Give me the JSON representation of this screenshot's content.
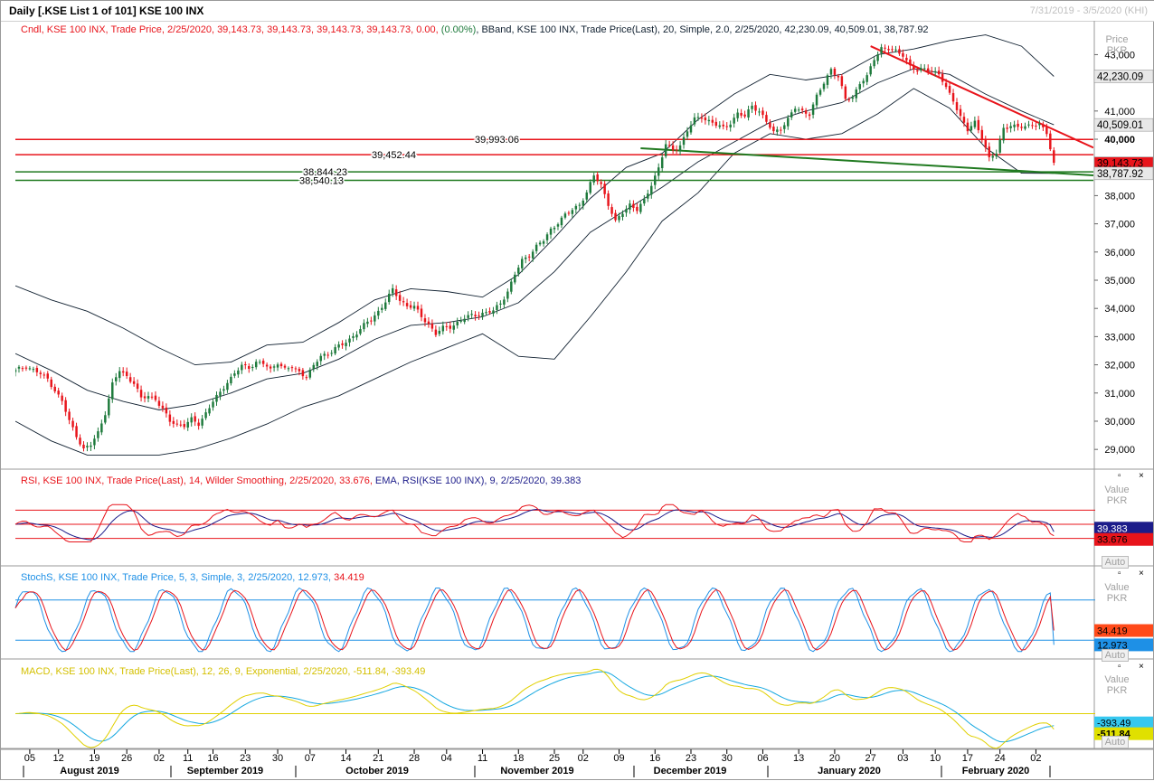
{
  "window": {
    "title": "Daily [.KSE List 1 of 101] KSE 100 INX",
    "date_range": "7/31/2019 - 3/5/2020 (KHI)"
  },
  "colors": {
    "up": "#1e7a3c",
    "down": "#e8141b",
    "bband": "#102030",
    "support": "#207a20",
    "resistance": "#e8141b",
    "rsi": "#e8141b",
    "rsi_ema": "#1c1c8a",
    "stoch_k": "#1e90e6",
    "stoch_d": "#e8141b",
    "macd": "#16a8e0",
    "macd_signal": "#e0d000"
  },
  "legends": {
    "price_cndl": "Cndl, KSE 100 INX, Trade Price,  2/25/2020, 39,143.73, 39,143.73, 39,143.73, 39,143.73, 0.00, ",
    "price_cndl_change": "(0.00%)",
    "price_bband": ", BBand, KSE 100 INX, Trade Price(Last),  20, Simple, 2.0,  2/25/2020, 42,230.09, 40,509.01, 38,787.92",
    "rsi_main": "RSI, KSE 100 INX, Trade Price(Last),  14, Wilder Smoothing,  2/25/2020, 33.676,",
    "rsi_ema": " EMA, RSI(KSE 100 INX),  9,  2/25/2020, 39.383",
    "stoch": "StochS, KSE 100 INX, Trade Price,  5, 3, Simple, 3,  2/25/2020, 12.973,",
    "stoch_d": " 34.419",
    "macd": "MACD, KSE 100 INX, Trade Price(Last),  12, 26, 9, Exponential,  2/25/2020, -511.84, -393.49"
  },
  "panels": {
    "price": {
      "y_header": "Price\nPKR"
    },
    "rsi": {
      "y_header": "Value\nPKR",
      "auto": "Auto"
    },
    "stoch": {
      "y_header": "Value\nPKR",
      "auto": "Auto"
    },
    "macd": {
      "y_header": "Value\nPKR",
      "auto": "Auto"
    }
  },
  "price_axis": {
    "ticks": [
      "29,000",
      "30,000",
      "31,000",
      "32,000",
      "33,000",
      "34,000",
      "35,000",
      "36,000",
      "37,000",
      "38,000",
      "40,000",
      "41,000",
      "43,000"
    ],
    "badges": [
      {
        "value": "42,230.09",
        "bg": "#e8e8e8",
        "fg": "#000"
      },
      {
        "value": "40,509.01",
        "bg": "#e8e8e8",
        "fg": "#000"
      },
      {
        "value": "39,143.73",
        "bg": "#e8141b",
        "fg": "#000"
      },
      {
        "value": "38,787.92",
        "bg": "#e8e8e8",
        "fg": "#000"
      }
    ]
  },
  "level_labels": [
    "39,993.06",
    "39,452.44",
    "38,844.23",
    "38,540.13"
  ],
  "indicator_badges": {
    "rsi": [
      {
        "value": "39.383",
        "bg": "#1c1c8a",
        "fg": "#fff"
      },
      {
        "value": "33.676",
        "bg": "#e8141b",
        "fg": "#000"
      }
    ],
    "stoch": [
      {
        "value": "34.419",
        "bg": "#ff4a1a",
        "fg": "#000"
      },
      {
        "value": "12.973",
        "bg": "#1e90e6",
        "fg": "#000"
      }
    ],
    "macd": [
      {
        "value": "-393.49",
        "bg": "#36c8f0",
        "fg": "#000"
      },
      {
        "value": "-511.84",
        "bg": "#e0e000",
        "fg": "#000"
      }
    ]
  },
  "time_axis": {
    "day_ticks": [
      "05",
      "12",
      "19",
      "26",
      "02",
      "11",
      "16",
      "23",
      "30",
      "07",
      "14",
      "21",
      "28",
      "04",
      "11",
      "18",
      "25",
      "02",
      "09",
      "16",
      "23",
      "30",
      "06",
      "13",
      "20",
      "27",
      "03",
      "10",
      "17",
      "24",
      "02"
    ],
    "months": [
      "August 2019",
      "September 2019",
      "October 2019",
      "November 2019",
      "December 2019",
      "January 2020",
      "February 2020"
    ]
  },
  "chart_data": {
    "type": "candlestick",
    "title": "Daily [.KSE List 1 of 101] KSE 100 INX",
    "ylabel": "Price PKR",
    "ylim": [
      28300,
      44200
    ],
    "candle_close_path": [
      [
        0,
        31800
      ],
      [
        3,
        31950
      ],
      [
        6,
        31750
      ],
      [
        9,
        31500
      ],
      [
        11,
        31100
      ],
      [
        13,
        30700
      ],
      [
        15,
        30000
      ],
      [
        17,
        29500
      ],
      [
        19,
        29000
      ],
      [
        21,
        29150
      ],
      [
        23,
        29600
      ],
      [
        25,
        30300
      ],
      [
        27,
        31300
      ],
      [
        29,
        31800
      ],
      [
        31,
        31600
      ],
      [
        33,
        31350
      ],
      [
        35,
        30800
      ],
      [
        37,
        30900
      ],
      [
        39,
        30800
      ],
      [
        41,
        30400
      ],
      [
        43,
        30000
      ],
      [
        45,
        29900
      ],
      [
        47,
        29850
      ],
      [
        49,
        30050
      ],
      [
        51,
        29900
      ],
      [
        53,
        30300
      ],
      [
        55,
        30700
      ],
      [
        57,
        31000
      ],
      [
        59,
        31400
      ],
      [
        61,
        31700
      ],
      [
        63,
        31950
      ],
      [
        65,
        31900
      ],
      [
        67,
        32100
      ],
      [
        69,
        32050
      ],
      [
        71,
        31800
      ],
      [
        73,
        32100
      ],
      [
        75,
        31850
      ],
      [
        77,
        31900
      ],
      [
        79,
        31750
      ],
      [
        81,
        31600
      ],
      [
        83,
        31950
      ],
      [
        85,
        32300
      ],
      [
        87,
        32400
      ],
      [
        89,
        32600
      ],
      [
        91,
        32700
      ],
      [
        93,
        32900
      ],
      [
        95,
        33150
      ],
      [
        97,
        33400
      ],
      [
        99,
        33600
      ],
      [
        101,
        33900
      ],
      [
        103,
        34250
      ],
      [
        105,
        34650
      ],
      [
        107,
        34300
      ],
      [
        109,
        34100
      ],
      [
        111,
        34050
      ],
      [
        113,
        33700
      ],
      [
        115,
        33450
      ],
      [
        117,
        33100
      ],
      [
        119,
        33300
      ],
      [
        121,
        33350
      ],
      [
        123,
        33500
      ],
      [
        125,
        33650
      ],
      [
        127,
        33750
      ],
      [
        129,
        33800
      ],
      [
        131,
        33850
      ],
      [
        133,
        33900
      ],
      [
        135,
        34200
      ],
      [
        137,
        34600
      ],
      [
        139,
        35200
      ],
      [
        141,
        35700
      ],
      [
        143,
        35900
      ],
      [
        145,
        36200
      ],
      [
        147,
        36400
      ],
      [
        149,
        36800
      ],
      [
        151,
        37050
      ],
      [
        153,
        37300
      ],
      [
        155,
        37500
      ],
      [
        157,
        37700
      ],
      [
        159,
        38100
      ],
      [
        161,
        38700
      ],
      [
        163,
        38400
      ],
      [
        165,
        37700
      ],
      [
        167,
        37050
      ],
      [
        169,
        37400
      ],
      [
        171,
        37700
      ],
      [
        173,
        37500
      ],
      [
        175,
        37800
      ],
      [
        177,
        38400
      ],
      [
        179,
        39000
      ],
      [
        181,
        39800
      ],
      [
        183,
        39600
      ],
      [
        185,
        39800
      ],
      [
        187,
        40300
      ],
      [
        189,
        40700
      ],
      [
        191,
        40800
      ],
      [
        193,
        40650
      ],
      [
        195,
        40500
      ],
      [
        197,
        40400
      ],
      [
        199,
        40600
      ],
      [
        201,
        40900
      ],
      [
        203,
        40800
      ],
      [
        205,
        41200
      ],
      [
        207,
        41000
      ],
      [
        209,
        40600
      ],
      [
        211,
        40250
      ],
      [
        213,
        40400
      ],
      [
        215,
        40700
      ],
      [
        217,
        41100
      ],
      [
        219,
        41000
      ],
      [
        221,
        40900
      ],
      [
        223,
        41500
      ],
      [
        225,
        42000
      ],
      [
        227,
        42500
      ],
      [
        229,
        42200
      ],
      [
        231,
        41400
      ],
      [
        233,
        41500
      ],
      [
        235,
        42000
      ],
      [
        237,
        42200
      ],
      [
        239,
        42850
      ],
      [
        241,
        43250
      ],
      [
        243,
        43200
      ],
      [
        245,
        43100
      ],
      [
        247,
        43000
      ],
      [
        249,
        42600
      ],
      [
        251,
        42400
      ],
      [
        253,
        42500
      ],
      [
        255,
        42450
      ],
      [
        257,
        42300
      ],
      [
        259,
        41800
      ],
      [
        261,
        41400
      ],
      [
        263,
        40800
      ],
      [
        265,
        40300
      ],
      [
        267,
        40600
      ],
      [
        269,
        40100
      ],
      [
        271,
        39300
      ],
      [
        273,
        39500
      ],
      [
        275,
        40400
      ],
      [
        277,
        40500
      ],
      [
        279,
        40400
      ],
      [
        281,
        40450
      ],
      [
        283,
        40550
      ],
      [
        285,
        40500
      ],
      [
        287,
        40200
      ],
      [
        289,
        39143.73
      ]
    ],
    "bollinger": {
      "period": 20,
      "stddev": 2.0,
      "upper_last": 42230.09,
      "middle_last": 40509.01,
      "lower_last": 38787.92,
      "upper": [
        [
          0,
          34800
        ],
        [
          10,
          34300
        ],
        [
          20,
          33900
        ],
        [
          30,
          33300
        ],
        [
          40,
          32600
        ],
        [
          50,
          32000
        ],
        [
          60,
          32100
        ],
        [
          70,
          32700
        ],
        [
          80,
          32800
        ],
        [
          90,
          33500
        ],
        [
          100,
          34300
        ],
        [
          110,
          34700
        ],
        [
          120,
          34600
        ],
        [
          130,
          34400
        ],
        [
          140,
          35200
        ],
        [
          150,
          36500
        ],
        [
          160,
          37900
        ],
        [
          170,
          39000
        ],
        [
          180,
          39500
        ],
        [
          190,
          40700
        ],
        [
          200,
          41600
        ],
        [
          210,
          42300
        ],
        [
          220,
          42100
        ],
        [
          230,
          42300
        ],
        [
          240,
          43000
        ],
        [
          250,
          43200
        ],
        [
          260,
          43500
        ],
        [
          270,
          43700
        ],
        [
          280,
          43300
        ],
        [
          289,
          42230.09
        ]
      ],
      "middle": [
        [
          0,
          32400
        ],
        [
          10,
          31800
        ],
        [
          20,
          31100
        ],
        [
          30,
          30700
        ],
        [
          40,
          30400
        ],
        [
          50,
          30600
        ],
        [
          60,
          31000
        ],
        [
          70,
          31500
        ],
        [
          80,
          31700
        ],
        [
          90,
          32200
        ],
        [
          100,
          32900
        ],
        [
          110,
          33400
        ],
        [
          120,
          33500
        ],
        [
          130,
          33700
        ],
        [
          140,
          34200
        ],
        [
          150,
          35300
        ],
        [
          160,
          36700
        ],
        [
          170,
          37500
        ],
        [
          180,
          38300
        ],
        [
          190,
          39200
        ],
        [
          200,
          39900
        ],
        [
          210,
          40600
        ],
        [
          220,
          41000
        ],
        [
          230,
          41300
        ],
        [
          240,
          42000
        ],
        [
          250,
          42500
        ],
        [
          260,
          42300
        ],
        [
          270,
          41600
        ],
        [
          280,
          41000
        ],
        [
          289,
          40509.01
        ]
      ],
      "lower": [
        [
          0,
          30000
        ],
        [
          10,
          29300
        ],
        [
          20,
          28800
        ],
        [
          30,
          28800
        ],
        [
          40,
          28800
        ],
        [
          50,
          29000
        ],
        [
          60,
          29400
        ],
        [
          70,
          29900
        ],
        [
          80,
          30500
        ],
        [
          90,
          30900
        ],
        [
          100,
          31500
        ],
        [
          110,
          32100
        ],
        [
          120,
          32600
        ],
        [
          130,
          33100
        ],
        [
          140,
          32300
        ],
        [
          150,
          32200
        ],
        [
          160,
          33700
        ],
        [
          170,
          35300
        ],
        [
          180,
          37100
        ],
        [
          190,
          38100
        ],
        [
          200,
          39500
        ],
        [
          210,
          40200
        ],
        [
          220,
          40000
        ],
        [
          230,
          40200
        ],
        [
          240,
          40900
        ],
        [
          250,
          41800
        ],
        [
          260,
          41100
        ],
        [
          270,
          39700
        ],
        [
          280,
          38800
        ],
        [
          289,
          38787.92
        ]
      ]
    },
    "horizontal_levels": [
      39993.06,
      39452.44,
      38844.23,
      38540.13
    ],
    "trendlines": [
      {
        "from": [
          238,
          43300
        ],
        "to": [
          300,
          39700
        ],
        "color": "resistance"
      },
      {
        "from": [
          174,
          39680
        ],
        "to": [
          300,
          38720
        ],
        "color": "support"
      }
    ],
    "rsi": {
      "period": 14,
      "last": 33.676,
      "ema_period": 9,
      "ema_last": 39.383,
      "levels": [
        70,
        50,
        30
      ]
    },
    "stochastic": {
      "k_period": 5,
      "d_period": 3,
      "k_last": 12.973,
      "d_last": 34.419,
      "levels": [
        80,
        20
      ]
    },
    "macd": {
      "fast": 12,
      "slow": 26,
      "signal": 9,
      "macd_last": -511.84,
      "signal_last": -393.49
    }
  }
}
